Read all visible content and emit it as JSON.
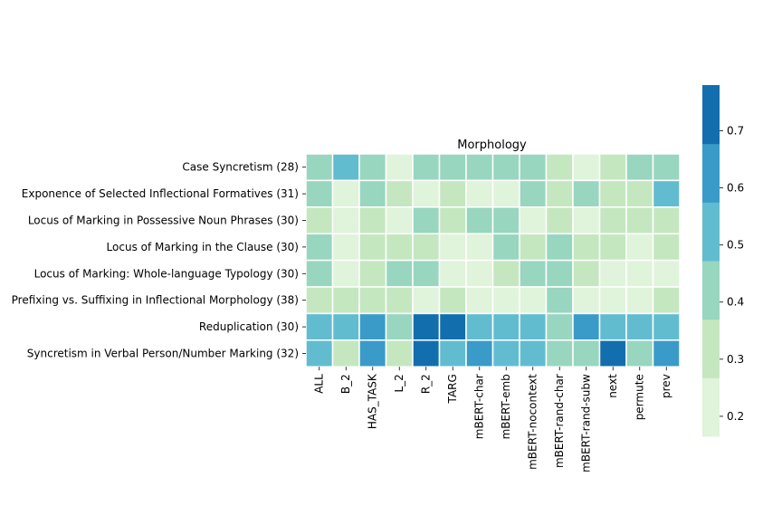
{
  "chart_data": {
    "type": "heatmap",
    "title": "Morphology",
    "xlabel": "",
    "ylabel": "",
    "x_categories": [
      "ALL",
      "B_2",
      "HAS_TASK",
      "L_2",
      "R_2",
      "TARG",
      "mBERT-char",
      "mBERT-emb",
      "mBERT-nocontext",
      "mBERT-rand-char",
      "mBERT-rand-subw",
      "next",
      "permute",
      "prev"
    ],
    "y_categories": [
      "Case Syncretism (28)",
      "Exponence of Selected Inflectional Formatives (31)",
      "Locus of Marking in Possessive Noun Phrases (30)",
      "Locus of Marking in the Clause (30)",
      "Locus of Marking: Whole-language Typology (30)",
      "Prefixing vs. Suffixing in Inflectional Morphology (38)",
      "Reduplication (30)",
      "Syncretism in Verbal Person/Number Marking (32)"
    ],
    "values": [
      [
        0.4,
        0.5,
        0.4,
        0.2,
        0.4,
        0.4,
        0.4,
        0.4,
        0.4,
        0.3,
        0.2,
        0.3,
        0.4,
        0.4
      ],
      [
        0.4,
        0.2,
        0.4,
        0.3,
        0.2,
        0.3,
        0.2,
        0.2,
        0.4,
        0.3,
        0.4,
        0.3,
        0.3,
        0.5
      ],
      [
        0.3,
        0.2,
        0.3,
        0.2,
        0.4,
        0.3,
        0.4,
        0.4,
        0.2,
        0.3,
        0.2,
        0.3,
        0.3,
        0.3
      ],
      [
        0.4,
        0.2,
        0.3,
        0.3,
        0.3,
        0.2,
        0.2,
        0.4,
        0.3,
        0.4,
        0.3,
        0.3,
        0.2,
        0.3
      ],
      [
        0.4,
        0.2,
        0.3,
        0.4,
        0.4,
        0.2,
        0.2,
        0.3,
        0.4,
        0.4,
        0.3,
        0.2,
        0.2,
        0.2
      ],
      [
        0.3,
        0.3,
        0.3,
        0.3,
        0.2,
        0.3,
        0.2,
        0.2,
        0.2,
        0.4,
        0.2,
        0.2,
        0.2,
        0.3
      ],
      [
        0.5,
        0.5,
        0.6,
        0.4,
        0.75,
        0.75,
        0.5,
        0.5,
        0.5,
        0.4,
        0.6,
        0.5,
        0.5,
        0.5
      ],
      [
        0.5,
        0.3,
        0.6,
        0.3,
        0.75,
        0.5,
        0.6,
        0.5,
        0.5,
        0.4,
        0.4,
        0.75,
        0.4,
        0.6
      ]
    ],
    "colorbar": {
      "range": [
        0.165,
        0.78
      ],
      "ticks": [
        0.2,
        0.3,
        0.4,
        0.5,
        0.6,
        0.7
      ],
      "tick_labels": [
        "0.2",
        "0.3",
        "0.4",
        "0.5",
        "0.6",
        "0.7"
      ],
      "colors": [
        "#e0f3db",
        "#c4e7c0",
        "#98d6c0",
        "#62bcd0",
        "#3a9bc9",
        "#136eae"
      ]
    },
    "cell_border": "#ffffff",
    "colormap": "GnBu (discrete, 6 levels)"
  }
}
